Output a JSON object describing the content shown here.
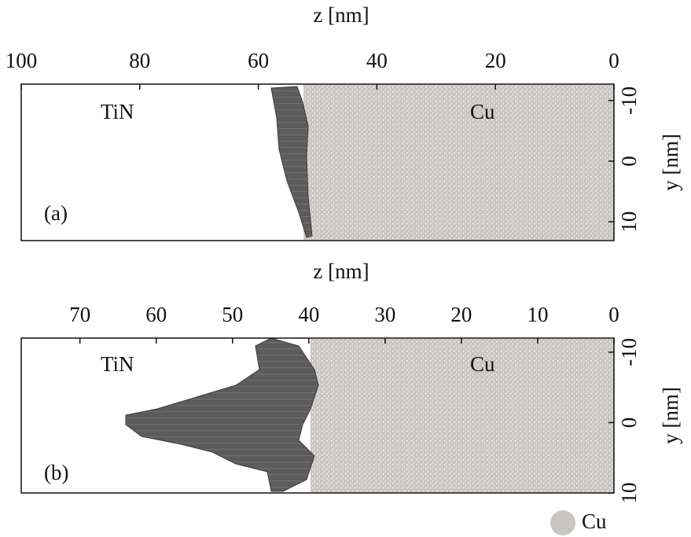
{
  "chart_data": [
    {
      "type": "image",
      "x_label": "z [nm]",
      "y_label": "y [nm]",
      "xlim": [
        100,
        0
      ],
      "xticks": [
        100,
        80,
        60,
        40,
        20,
        0
      ],
      "ylim": [
        -12.7,
        13.1
      ],
      "yticks": [
        -10,
        0,
        10
      ],
      "annotations": [
        "TiN",
        "Cu",
        "(a)"
      ],
      "color": "#c9c5c0"
    },
    {
      "type": "image",
      "x_label": "z [nm]",
      "y_label": "y [nm]",
      "xlim": [
        77.7,
        0
      ],
      "xticks": [
        70,
        60,
        50,
        40,
        30,
        20,
        10,
        0
      ],
      "ylim": [
        -12,
        10
      ],
      "yticks": [
        -10,
        0,
        10
      ],
      "annotations": [
        "TiN",
        "Cu",
        "(b)"
      ],
      "color": "#c9c5c0"
    }
  ],
  "legend": {
    "label": "Cu",
    "color": "#c9c5c0"
  }
}
